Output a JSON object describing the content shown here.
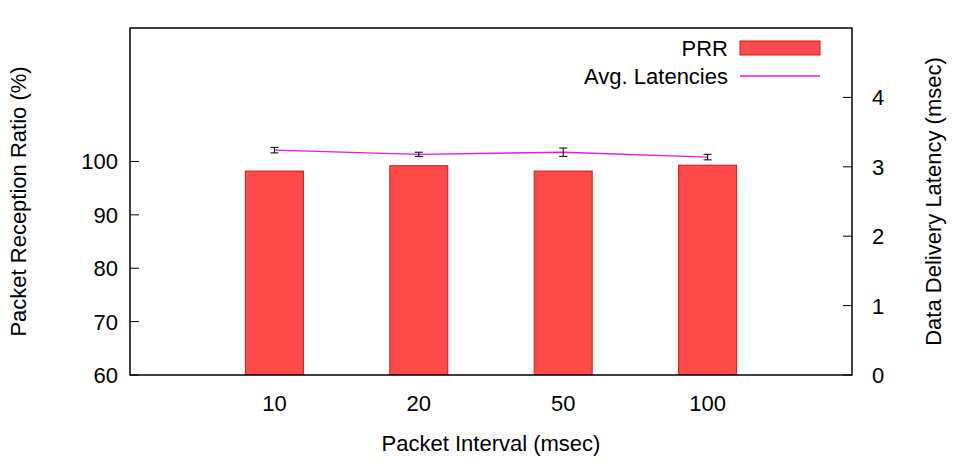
{
  "chart_data": {
    "type": "bar",
    "xlabel": "Packet Interval (msec)",
    "ylabel": "Packet Reception Ratio (%)",
    "y2label": "Data Delivery Latency (msec)",
    "categories": [
      "10",
      "20",
      "50",
      "100"
    ],
    "series": [
      {
        "name": "PRR",
        "type": "bar",
        "color": "#ff4a4a",
        "values": [
          98.2,
          99.2,
          98.2,
          99.3
        ]
      },
      {
        "name": "Avg. Latencies",
        "type": "line",
        "axis": "y2",
        "color": "#e619e6",
        "values": [
          3.24,
          3.18,
          3.21,
          3.14
        ],
        "errors": [
          0.04,
          0.03,
          0.06,
          0.04
        ]
      }
    ],
    "ylim": [
      60,
      125
    ],
    "yticks": [
      60,
      70,
      80,
      90,
      100
    ],
    "y2lim": [
      0,
      5
    ],
    "y2ticks": [
      0,
      1,
      2,
      3,
      4
    ],
    "legend": "top-right"
  }
}
